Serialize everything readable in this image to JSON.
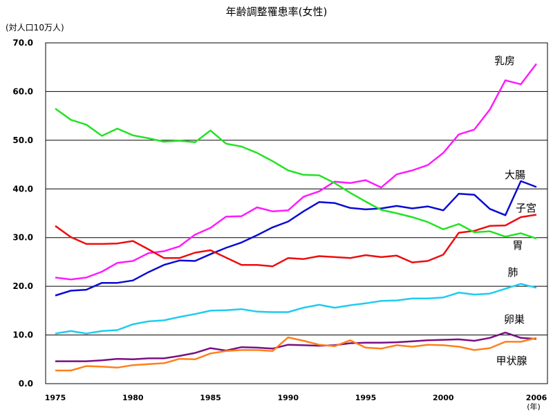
{
  "chart_data": {
    "type": "line",
    "title": "年齢調整罹患率(女性)",
    "unit_label": "(対人口10万人)",
    "x_unit_label": "(年)",
    "x": [
      1975,
      1976,
      1977,
      1978,
      1979,
      1980,
      1981,
      1982,
      1983,
      1984,
      1985,
      1986,
      1987,
      1988,
      1989,
      1990,
      1991,
      1992,
      1993,
      1994,
      1995,
      1996,
      1997,
      1998,
      1999,
      2000,
      2001,
      2002,
      2003,
      2004,
      2005,
      2006
    ],
    "xticks": [
      1975,
      1980,
      1985,
      1990,
      1995,
      2000,
      2006
    ],
    "xtick_labels": [
      "1975",
      "1980",
      "1985",
      "1990",
      "1995",
      "2000",
      "2006"
    ],
    "ylim": [
      0,
      70
    ],
    "yticks": [
      0,
      10,
      20,
      30,
      40,
      50,
      60,
      70
    ],
    "ytick_labels": [
      "0.0",
      "10.0",
      "20.0",
      "30.0",
      "40.0",
      "50.0",
      "60.0",
      "70.0"
    ],
    "grid": true,
    "series": [
      {
        "name": "乳房",
        "color": "#ff1aff",
        "values": [
          21.8,
          21.4,
          21.8,
          23.0,
          24.8,
          25.2,
          26.8,
          27.2,
          28.2,
          30.6,
          32.0,
          34.3,
          34.4,
          36.2,
          35.4,
          35.6,
          38.4,
          39.5,
          41.5,
          41.2,
          41.8,
          40.3,
          43.0,
          43.8,
          44.9,
          47.4,
          51.2,
          52.2,
          56.3,
          62.3,
          61.5,
          65.7
        ]
      },
      {
        "name": "大腸",
        "color": "#0a0ad2",
        "values": [
          18.1,
          19.1,
          19.3,
          20.7,
          20.7,
          21.2,
          22.9,
          24.4,
          25.3,
          25.2,
          26.6,
          27.9,
          29.0,
          30.5,
          32.1,
          33.3,
          35.4,
          37.3,
          37.1,
          36.1,
          35.8,
          36.0,
          36.5,
          36.0,
          36.4,
          35.6,
          39.0,
          38.8,
          35.9,
          34.6,
          41.6,
          40.4
        ]
      },
      {
        "name": "子宮",
        "color": "#ee0c0c",
        "values": [
          32.4,
          30.1,
          28.7,
          28.7,
          28.8,
          29.3,
          27.6,
          25.8,
          25.8,
          26.9,
          27.4,
          25.9,
          24.4,
          24.4,
          24.1,
          25.8,
          25.6,
          26.2,
          26.0,
          25.8,
          26.4,
          26.0,
          26.3,
          24.9,
          25.2,
          26.5,
          31.0,
          31.4,
          32.4,
          32.5,
          34.2,
          34.7
        ]
      },
      {
        "name": "胃",
        "color": "#22e322",
        "values": [
          56.5,
          54.2,
          53.2,
          50.9,
          52.4,
          51.0,
          50.4,
          49.7,
          49.9,
          49.6,
          52.0,
          49.3,
          48.7,
          47.4,
          45.7,
          43.8,
          42.9,
          42.8,
          41.2,
          39.2,
          37.4,
          35.7,
          35.0,
          34.2,
          33.2,
          31.7,
          32.8,
          31.1,
          31.3,
          30.2,
          30.9,
          29.8
        ]
      },
      {
        "name": "肺",
        "color": "#1ecbf0",
        "values": [
          10.3,
          10.8,
          10.3,
          10.8,
          11.0,
          12.2,
          12.8,
          13.0,
          13.7,
          14.3,
          15.0,
          15.1,
          15.3,
          14.8,
          14.7,
          14.7,
          15.6,
          16.2,
          15.6,
          16.1,
          16.5,
          17.0,
          17.1,
          17.5,
          17.5,
          17.7,
          18.7,
          18.3,
          18.5,
          19.5,
          20.5,
          19.7
        ]
      },
      {
        "name": "卵巣",
        "color": "#7a0f82",
        "values": [
          4.6,
          4.6,
          4.6,
          4.8,
          5.1,
          5.0,
          5.2,
          5.2,
          5.7,
          6.3,
          7.3,
          6.8,
          7.5,
          7.4,
          7.2,
          8.0,
          7.9,
          7.8,
          7.9,
          8.3,
          8.4,
          8.4,
          8.5,
          8.7,
          8.9,
          9.0,
          9.1,
          8.8,
          9.4,
          10.5,
          9.4,
          9.2
        ]
      },
      {
        "name": "甲状腺",
        "color": "#ff7f1a",
        "values": [
          2.7,
          2.7,
          3.6,
          3.5,
          3.3,
          3.8,
          4.0,
          4.2,
          5.1,
          5.0,
          6.2,
          6.7,
          6.9,
          6.9,
          6.7,
          9.5,
          8.8,
          8.0,
          7.7,
          8.9,
          7.4,
          7.2,
          7.9,
          7.6,
          8.0,
          7.9,
          7.6,
          6.9,
          7.3,
          8.6,
          8.6,
          9.4
        ]
      }
    ],
    "series_labels": [
      "乳房",
      "大腸",
      "子宮",
      "胃",
      "肺",
      "卵巣",
      "甲状腺"
    ]
  }
}
